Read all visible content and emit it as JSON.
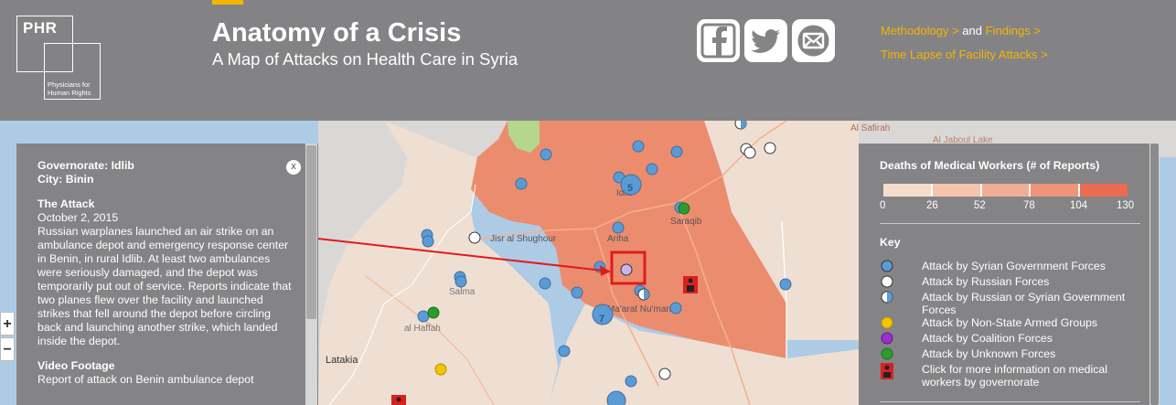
{
  "header": {
    "logo_text": "PHR",
    "logo_org": "Physicians for Human Rights",
    "title": "Anatomy of a Crisis",
    "subtitle": "A Map of Attacks on Health Care in Syria",
    "links": {
      "methodology": "Methodology >",
      "and": "and",
      "findings": "Findings >",
      "time_lapse": "Time Lapse of Facility Attacks >"
    },
    "social_icons": [
      "facebook-icon",
      "twitter-icon",
      "email-icon"
    ]
  },
  "colors": {
    "header_bg": "#838386",
    "accent": "#f5b400",
    "water": "#aecbe6",
    "land": "#efdfd2",
    "idlib_fill": "#ec8c6f",
    "panel_bg": "#848487",
    "gov_forces": "#5b9bd5",
    "russian_forces": "#ffffff",
    "non_state": "#f5c400",
    "coalition": "#9b30d0",
    "unknown": "#2e9b2e",
    "highlight": "#e01b1b"
  },
  "info_panel": {
    "governorate": "Governorate: Idlib",
    "city": "City: Binin",
    "close_label": "x",
    "attack_heading": "The Attack",
    "date": "October 2, 2015",
    "description": "Russian warplanes launched an air strike on an ambulance depot and emergency response center in Benin, in rural Idlib. At least two ambulances were seriously damaged, and the depot was temporarily put out of service. Reports indicate that two planes flew over the facility and launched strikes that fell around the depot before circling back and launching another strike, which landed inside the depot.",
    "video_heading": "Video Footage",
    "video_text": "Report of attack on Benin ambulance depot"
  },
  "zoom": {
    "in_label": "+",
    "out_label": "−"
  },
  "map_labels": {
    "idlib": "Idlib",
    "saraqib": "Saraqib",
    "ariha": "Ariha",
    "jisr": "Jisr al Shughour",
    "salma": "Salma",
    "al_haffah": "al Haffah",
    "maarat": "Ma'arat Nu'man",
    "latakia": "Latakia",
    "al_safirah": "Al Safirah",
    "jaboul_lake": "Al Jaboul Lake",
    "cluster_5": "5",
    "cluster_7": "7"
  },
  "legend": {
    "deaths_title": "Deaths of Medical Workers (# of Reports)",
    "scale_colors": [
      "#f6ddcb",
      "#f4c4ad",
      "#f1ad93",
      "#ee9478",
      "#ea6b52"
    ],
    "scale_labels": [
      "0",
      "26",
      "52",
      "78",
      "104",
      "130"
    ],
    "key_title": "Key",
    "items": [
      {
        "label": "Attack by Syrian Government Forces",
        "icon": "blue-circle-icon"
      },
      {
        "label": "Attack by Russian Forces",
        "icon": "white-circle-icon"
      },
      {
        "label": "Attack by Russian or Syrian Government Forces",
        "icon": "half-circle-icon"
      },
      {
        "label": "Attack by Non-State Armed Groups",
        "icon": "yellow-circle-icon"
      },
      {
        "label": "Attack by Coalition Forces",
        "icon": "purple-circle-icon"
      },
      {
        "label": "Attack by Unknown Forces",
        "icon": "green-circle-icon"
      },
      {
        "label": "Click for more information on medical workers by governorate",
        "icon": "medical-worker-icon"
      }
    ]
  }
}
